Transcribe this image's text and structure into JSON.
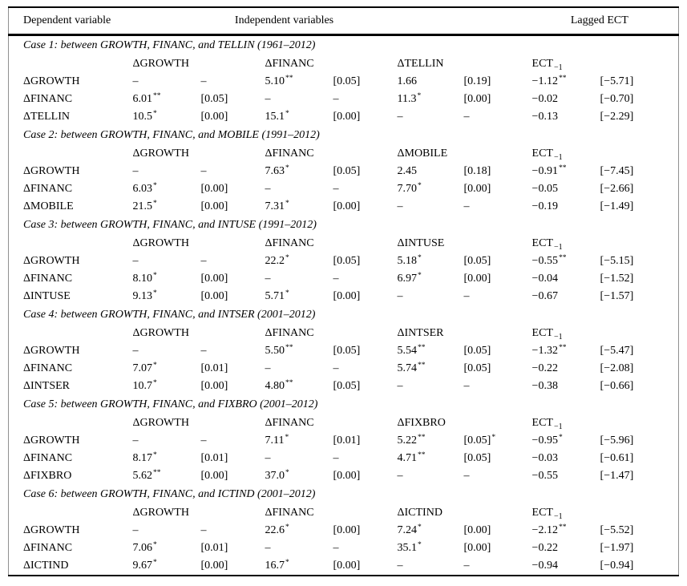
{
  "colors": {
    "text": "#000000",
    "background": "#ffffff",
    "rule": "#000000"
  },
  "table": {
    "header": {
      "dependent": "Dependent variable",
      "independent": "Independent variables",
      "lagged": "Lagged ECT"
    },
    "ect_header": {
      "base": "ECT",
      "sub": "−1"
    },
    "cases": [
      {
        "title": "Case 1: between GROWTH, FINANC, and TELLIN (1961–2012)",
        "col_headers": [
          "ΔGROWTH",
          "ΔFINANC",
          "ΔTELLIN"
        ],
        "rows": [
          {
            "label": "ΔGROWTH",
            "cells": [
              "–",
              "–",
              "5.10^**",
              "[0.05]",
              "1.66",
              "[0.19]",
              "−1.12^**",
              "[−5.71]"
            ]
          },
          {
            "label": "ΔFINANC",
            "cells": [
              "6.01^**",
              "[0.05]",
              "–",
              "–",
              "11.3^*",
              "[0.00]",
              "−0.02",
              "[−0.70]"
            ]
          },
          {
            "label": "ΔTELLIN",
            "cells": [
              "10.5^*",
              "[0.00]",
              "15.1^*",
              "[0.00]",
              "–",
              "–",
              "−0.13",
              "[−2.29]"
            ]
          }
        ]
      },
      {
        "title": "Case 2: between GROWTH, FINANC, and MOBILE (1991–2012)",
        "col_headers": [
          "ΔGROWTH",
          "ΔFINANC",
          "ΔMOBILE"
        ],
        "rows": [
          {
            "label": "ΔGROWTH",
            "cells": [
              "–",
              "–",
              "7.63^*",
              "[0.05]",
              "2.45",
              "[0.18]",
              "−0.91^**",
              "[−7.45]"
            ]
          },
          {
            "label": "ΔFINANC",
            "cells": [
              "6.03^*",
              "[0.00]",
              "–",
              "–",
              "7.70^*",
              "[0.00]",
              "−0.05",
              "[−2.66]"
            ]
          },
          {
            "label": "ΔMOBILE",
            "cells": [
              "21.5^*",
              "[0.00]",
              "7.31^*",
              "[0.00]",
              "–",
              "–",
              "−0.19",
              "[−1.49]"
            ]
          }
        ]
      },
      {
        "title": "Case 3: between GROWTH, FINANC, and INTUSE (1991–2012)",
        "col_headers": [
          "ΔGROWTH",
          "ΔFINANC",
          "ΔINTUSE"
        ],
        "rows": [
          {
            "label": "ΔGROWTH",
            "cells": [
              "–",
              "–",
              "22.2^*",
              "[0.05]",
              "5.18^*",
              "[0.05]",
              "−0.55^**",
              "[−5.15]"
            ]
          },
          {
            "label": "ΔFINANC",
            "cells": [
              "8.10^*",
              "[0.00]",
              "–",
              "–",
              "6.97^*",
              "[0.00]",
              "−0.04",
              "[−1.52]"
            ]
          },
          {
            "label": "ΔINTUSE",
            "cells": [
              "9.13^*",
              "[0.00]",
              "5.71^*",
              "[0.00]",
              "–",
              "–",
              "−0.67",
              "[−1.57]"
            ]
          }
        ]
      },
      {
        "title": "Case 4: between GROWTH, FINANC, and INTSER (2001–2012)",
        "col_headers": [
          "ΔGROWTH",
          "ΔFINANC",
          "ΔINTSER"
        ],
        "rows": [
          {
            "label": "ΔGROWTH",
            "cells": [
              "–",
              "–",
              "5.50^**",
              "[0.05]",
              "5.54^**",
              "[0.05]",
              "−1.32^**",
              "[−5.47]"
            ]
          },
          {
            "label": "ΔFINANC",
            "cells": [
              "7.07^*",
              "[0.01]",
              "–",
              "–",
              "5.74^**",
              "[0.05]",
              "−0.22",
              "[−2.08]"
            ]
          },
          {
            "label": "ΔINTSER",
            "cells": [
              "10.7^*",
              "[0.00]",
              "4.80^**",
              "[0.05]",
              "–",
              "–",
              "−0.38",
              "[−0.66]"
            ]
          }
        ]
      },
      {
        "title": "Case 5: between GROWTH, FINANC, and FIXBRO (2001–2012)",
        "col_headers": [
          "ΔGROWTH",
          "ΔFINANC",
          "ΔFIXBRO"
        ],
        "rows": [
          {
            "label": "ΔGROWTH",
            "cells": [
              "–",
              "–",
              "7.11^*",
              "[0.01]",
              "5.22^**",
              "[0.05]^*",
              "−0.95^*",
              "[−5.96]"
            ]
          },
          {
            "label": "ΔFINANC",
            "cells": [
              "8.17^*",
              "[0.01]",
              "–",
              "–",
              "4.71^**",
              "[0.05]",
              "−0.03",
              "[−0.61]"
            ]
          },
          {
            "label": "ΔFIXBRO",
            "cells": [
              "5.62^**",
              "[0.00]",
              "37.0^*",
              "[0.00]",
              "–",
              "–",
              "−0.55",
              "[−1.47]"
            ]
          }
        ]
      },
      {
        "title": "Case 6: between GROWTH, FINANC, and ICTIND (2001–2012)",
        "col_headers": [
          "ΔGROWTH",
          "ΔFINANC",
          "ΔICTIND"
        ],
        "rows": [
          {
            "label": "ΔGROWTH",
            "cells": [
              "–",
              "–",
              "22.6^*",
              "[0.00]",
              "7.24^*",
              "[0.00]",
              "−2.12^**",
              "[−5.52]"
            ]
          },
          {
            "label": "ΔFINANC",
            "cells": [
              "7.06^*",
              "[0.01]",
              "–",
              "–",
              "35.1^*",
              "[0.00]",
              "−0.22",
              "[−1.97]"
            ]
          },
          {
            "label": "ΔICTIND",
            "cells": [
              "9.67^*",
              "[0.00]",
              "16.7^*",
              "[0.00]",
              "–",
              "–",
              "−0.94",
              "[−0.94]"
            ]
          }
        ]
      }
    ]
  }
}
